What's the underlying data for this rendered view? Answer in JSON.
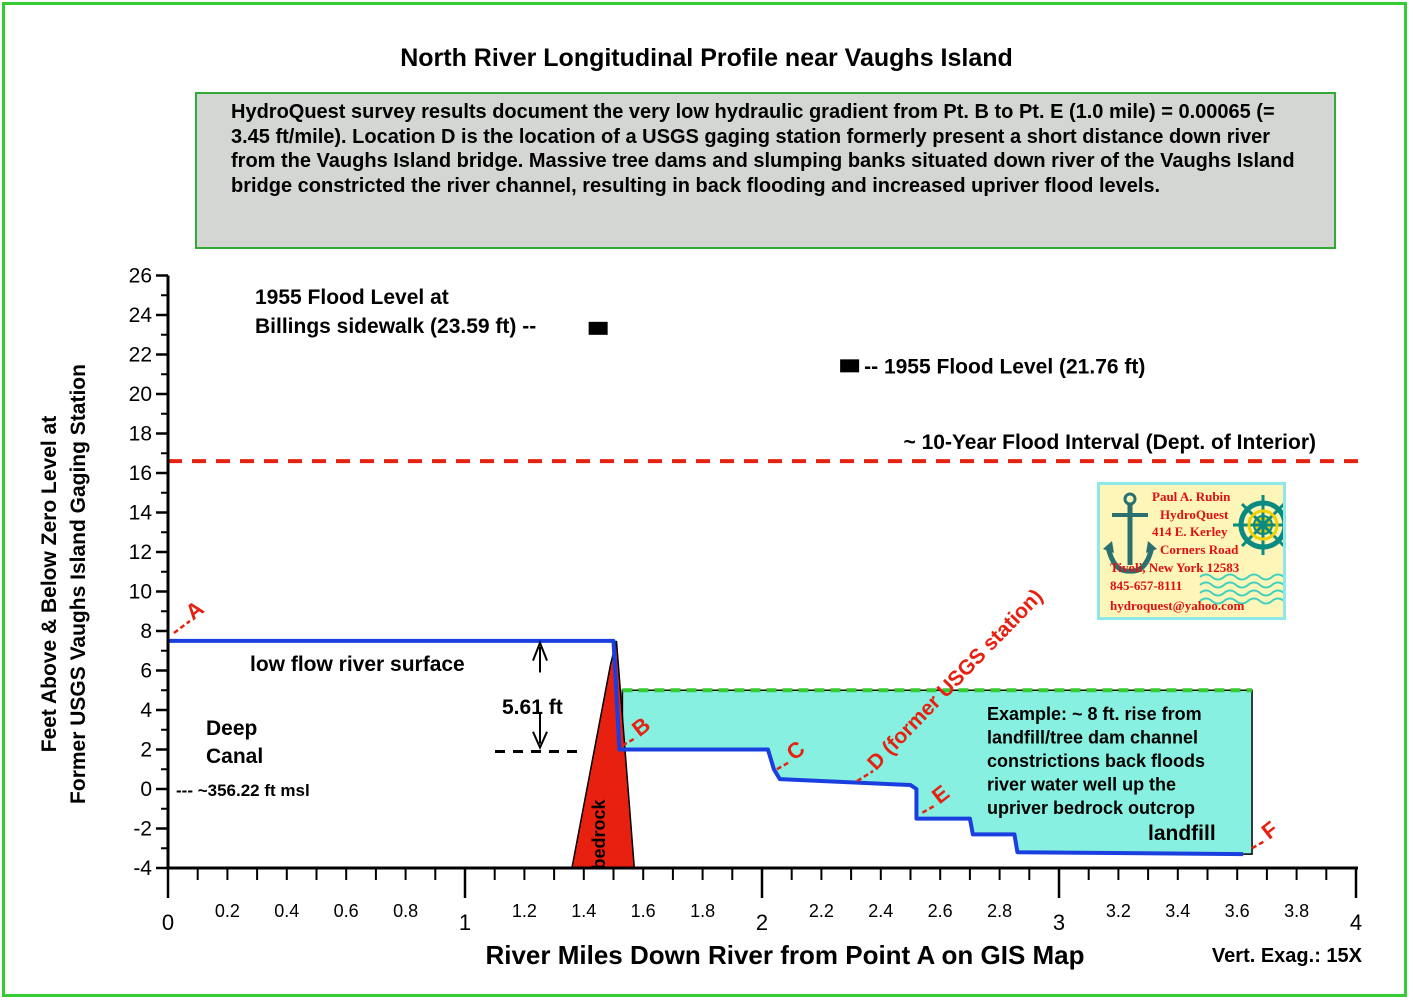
{
  "frame_color": "#33cc33",
  "chart_data": {
    "type": "line",
    "title": "North River Longitudinal Profile near Vaughs Island",
    "description": "HydroQuest survey results document the very low hydraulic gradient from Pt. B to Pt. E (1.0 mile) = 0.00065 (= 3.45 ft/mile).  Location D is the location of a USGS gaging station formerly present a short distance down river from the Vaughs Island bridge.  Massive tree dams and slumping banks situated down river of the Vaughs Island bridge constricted the river channel, resulting in back flooding and increased upriver flood levels.",
    "xlabel": "River Miles Down River from Point A on GIS Map",
    "ylabel_line1": "Feet Above & Below Zero Level at",
    "ylabel_line2": "Former USGS Vaughs Island Gaging Station",
    "xlim": [
      0,
      4
    ],
    "ylim": [
      -4,
      26
    ],
    "x_major_ticks": [
      "0",
      "1",
      "2",
      "3",
      "4"
    ],
    "x_minor_ticks": [
      "0.2",
      "0.4",
      "0.6",
      "0.8",
      "1.2",
      "1.4",
      "1.6",
      "1.8",
      "2.2",
      "2.4",
      "2.6",
      "2.8",
      "3.2",
      "3.4",
      "3.6",
      "3.8"
    ],
    "y_ticks": [
      "-4",
      "-2",
      "0",
      "2",
      "4",
      "6",
      "8",
      "10",
      "12",
      "14",
      "16",
      "18",
      "20",
      "22",
      "24",
      "26"
    ],
    "vert_exag": "Vert. Exag.: 15X",
    "series": [
      {
        "name": "low flow river surface",
        "color": "#1a3fe0",
        "points": [
          [
            0,
            7.5
          ],
          [
            1.5,
            7.5
          ],
          [
            1.52,
            2.0
          ],
          [
            2.02,
            2.0
          ],
          [
            2.04,
            1.0
          ],
          [
            2.06,
            0.5
          ],
          [
            2.5,
            0.2
          ],
          [
            2.52,
            0.0
          ],
          [
            2.52,
            -1.5
          ],
          [
            2.7,
            -1.5
          ],
          [
            2.71,
            -2.3
          ],
          [
            2.85,
            -2.3
          ],
          [
            2.86,
            -3.2
          ],
          [
            3.62,
            -3.3
          ]
        ]
      }
    ],
    "flood_pool_series": {
      "name": "back flooding",
      "color": "#88f0e0",
      "level": 5.0,
      "x_start": 1.53,
      "x_end": 3.65
    },
    "bedrock": {
      "label": "bedrock",
      "color": "#e82010",
      "base_x": [
        1.36,
        1.57
      ],
      "peak": [
        1.49,
        7.5
      ],
      "base_y": -4
    },
    "horizontal_lines": [
      {
        "label": "~ 10-Year Flood Interval (Dept. of Interior)",
        "y": 16.6,
        "color": "#e82010"
      },
      {
        "label": "",
        "y": 5.0,
        "color": "#33cc33"
      }
    ],
    "markers": [
      {
        "label_line1": "1955 Flood Level at",
        "label_line2": "Billings sidewalk (23.59 ft) --",
        "x": 1.45,
        "y": 23.3
      },
      {
        "label": "-- 1955 Flood Level (21.76 ft)",
        "x": 2.29,
        "y": 21.4
      }
    ],
    "points": [
      {
        "label": "A",
        "x": 0.02,
        "y": 7.9,
        "color": "#e82010"
      },
      {
        "label": "B",
        "x": 1.53,
        "y": 2.2,
        "color": "#e82010"
      },
      {
        "label": "C",
        "x": 2.05,
        "y": 1.0,
        "color": "#e82010"
      },
      {
        "label": "D (former USGS station)",
        "x": 2.32,
        "y": 0.4,
        "color": "#e82010"
      },
      {
        "label": "E",
        "x": 2.54,
        "y": -1.2,
        "color": "#e82010"
      },
      {
        "label": "F",
        "x": 3.65,
        "y": -3.0,
        "color": "#e82010"
      }
    ],
    "annotations": [
      {
        "key": "river_surface",
        "text": "low flow river surface"
      },
      {
        "key": "drop",
        "text": "5.61 ft"
      },
      {
        "key": "deep1",
        "text": "Deep"
      },
      {
        "key": "deep2",
        "text": "Canal"
      },
      {
        "key": "msl",
        "text": "--- ~356.22 ft msl"
      },
      {
        "key": "landfill",
        "text": "landfill"
      },
      {
        "key": "ex1",
        "text": "Example: ~ 8 ft. rise from"
      },
      {
        "key": "ex2",
        "text": "landfill/tree dam channel"
      },
      {
        "key": "ex3",
        "text": "constrictions back floods"
      },
      {
        "key": "ex4",
        "text": "river water well up the"
      },
      {
        "key": "ex5",
        "text": "upriver bedrock outcrop"
      }
    ]
  },
  "stamp": {
    "lines": [
      "Paul A. Rubin",
      "HydroQuest",
      "414 E. Kerley",
      "Corners Road",
      "Tivoli, New York 12583",
      "845-657-8111",
      "hydroquest@yahoo.com"
    ],
    "text_color": "#e01010",
    "anchor_color": "#2a7070",
    "wheel_color": "#0a8a80"
  }
}
